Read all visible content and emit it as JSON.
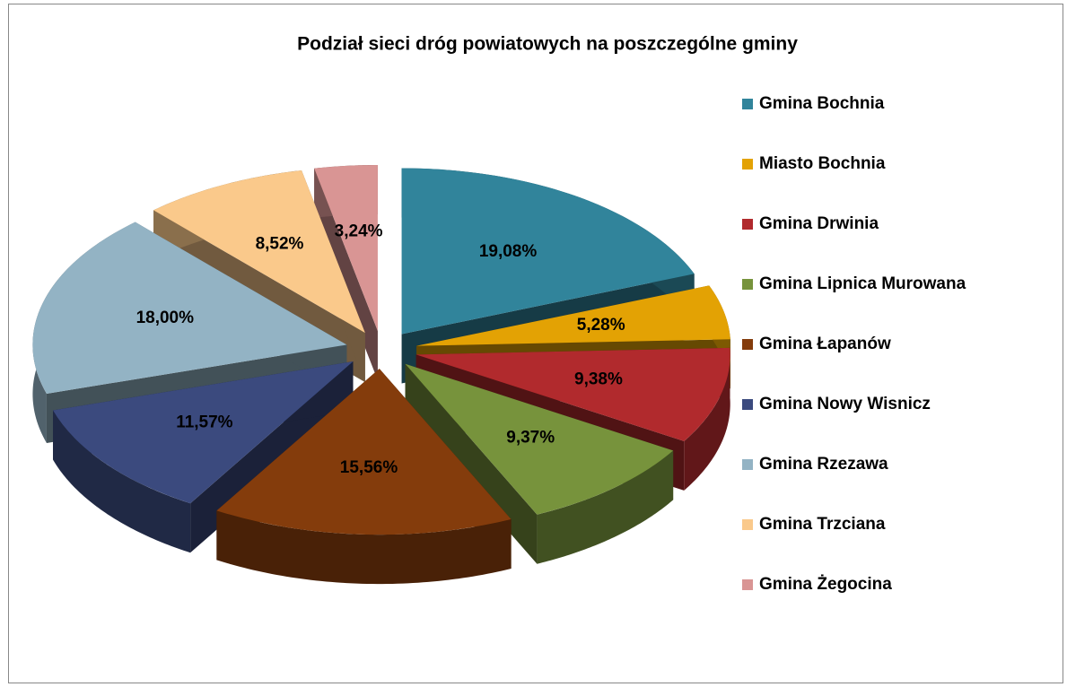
{
  "chart_data": {
    "type": "pie3d",
    "title": "Podział sieci dróg powiatowych na poszczególne gminy",
    "categories": [
      "Gmina Bochnia",
      "Miasto Bochnia",
      "Gmina Drwinia",
      "Gmina Lipnica Murowana",
      "Gmina Łapanów",
      "Gmina Nowy Wisnicz",
      "Gmina Rzezawa",
      "Gmina Trzciana",
      "Gmina Żegocina"
    ],
    "values": [
      19.08,
      5.28,
      9.38,
      9.37,
      15.56,
      11.57,
      18.0,
      8.52,
      3.24
    ],
    "value_labels": [
      "19,08%",
      "5,28%",
      "9,38%",
      "9,37%",
      "15,56%",
      "11,57%",
      "18,00%",
      "8,52%",
      "3,24%"
    ],
    "colors": [
      "#31849b",
      "#e3a204",
      "#b12a2d",
      "#77933c",
      "#843c0c",
      "#3b4a7e",
      "#93b3c4",
      "#fac98b",
      "#d99594"
    ],
    "legend": "right"
  }
}
